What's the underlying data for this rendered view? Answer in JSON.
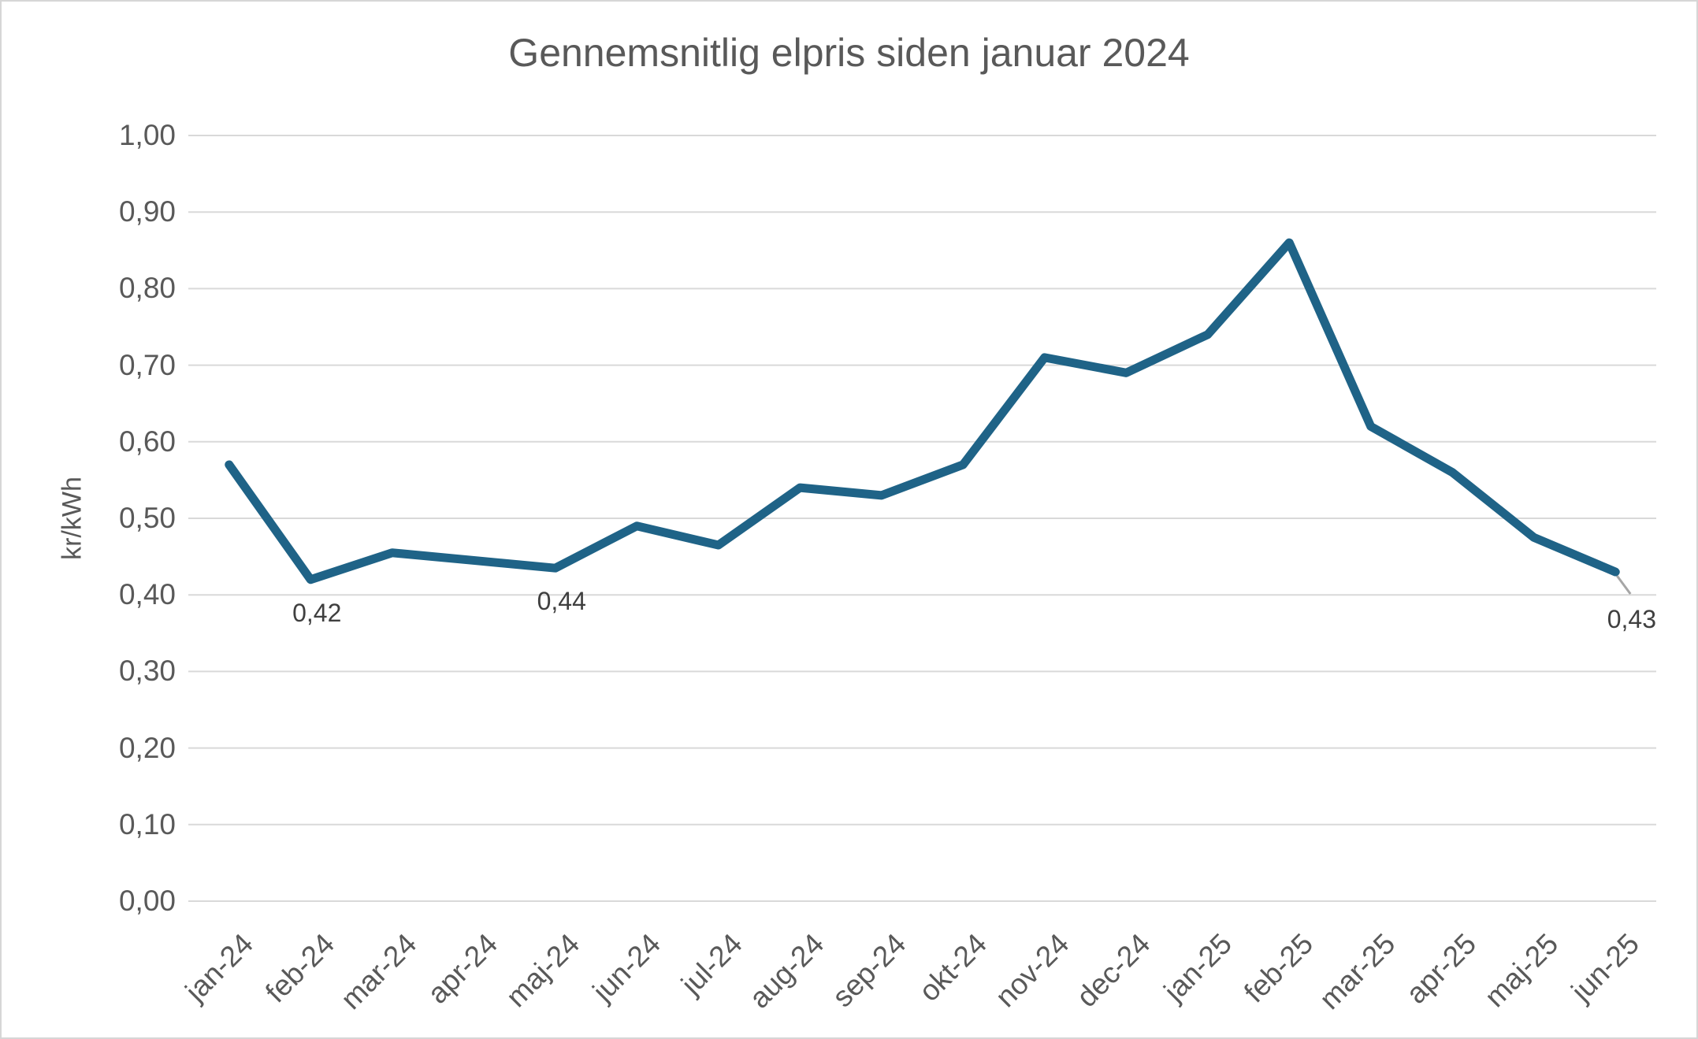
{
  "chart_data": {
    "type": "line",
    "title": "Gennemsnitlig elpris siden januar 2024",
    "ylabel": "kr/kWh",
    "xlabel": "",
    "categories": [
      "jan-24",
      "feb-24",
      "mar-24",
      "apr-24",
      "maj-24",
      "jun-24",
      "jul-24",
      "aug-24",
      "sep-24",
      "okt-24",
      "nov-24",
      "dec-24",
      "jan-25",
      "feb-25",
      "mar-25",
      "apr-25",
      "maj-25",
      "jun-25"
    ],
    "values": [
      0.57,
      0.42,
      0.455,
      0.445,
      0.435,
      0.49,
      0.465,
      0.54,
      0.53,
      0.57,
      0.71,
      0.69,
      0.74,
      0.86,
      0.62,
      0.56,
      0.475,
      0.43
    ],
    "data_labels": [
      {
        "category": "feb-24",
        "label": "0,42",
        "callout": false
      },
      {
        "category": "maj-24",
        "label": "0,44",
        "callout": false
      },
      {
        "category": "jun-25",
        "label": "0,43",
        "callout": true
      }
    ],
    "ylim": [
      0,
      1.0
    ],
    "ytick_step": 0.1,
    "ytick_labels": [
      "0,00",
      "0,10",
      "0,20",
      "0,30",
      "0,40",
      "0,50",
      "0,60",
      "0,70",
      "0,80",
      "0,90",
      "1,00"
    ],
    "grid": "horizontal",
    "legend": "none",
    "line_color": "#1f6387",
    "gridline_color": "#d9d9d9",
    "axis_text_color": "#595959",
    "data_label_color": "#3f3f3f",
    "leader_line_color": "#a6a6a6",
    "background_color": "#ffffff"
  }
}
